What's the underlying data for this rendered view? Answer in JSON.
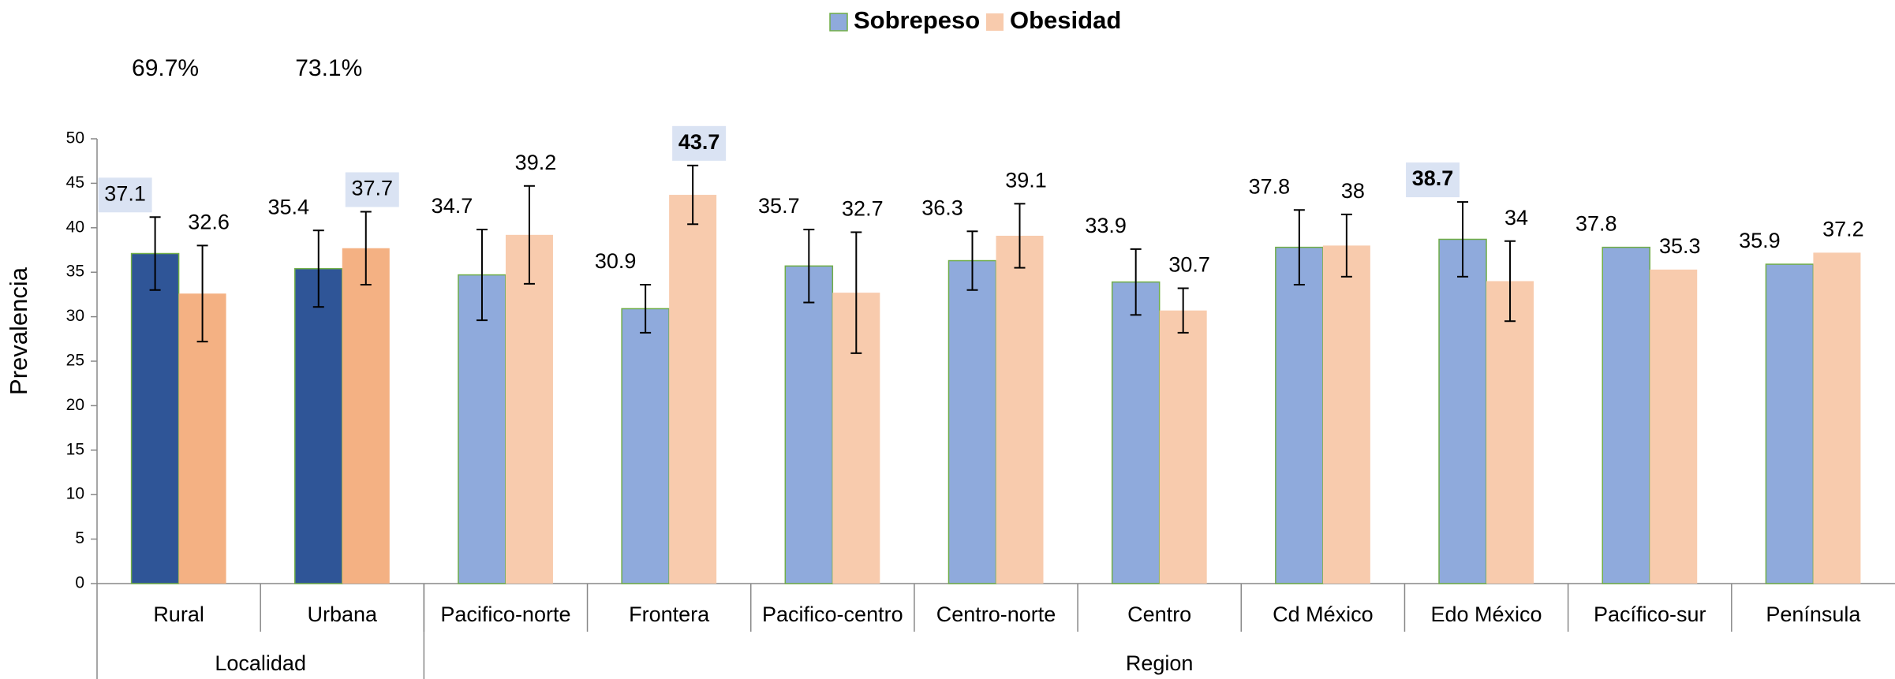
{
  "chart_data": {
    "type": "bar",
    "ylabel": "Prevalencia",
    "categories": [
      "Rural",
      "Urbana",
      "Pacifico-norte",
      "Frontera",
      "Pacifico-centro",
      "Centro-norte",
      "Centro",
      "Cd México",
      "Edo México",
      "Pacífico-sur",
      "Península"
    ],
    "groups": [
      {
        "label": "Localidad",
        "span": 2
      },
      {
        "label": "Region",
        "span": 9
      }
    ],
    "series": [
      {
        "name": "Sobrepeso",
        "color": "#8faadc",
        "edgecolor": "#70ad47",
        "colors": [
          "#2f5597",
          "#2f5597",
          "#8faadc",
          "#8faadc",
          "#8faadc",
          "#8faadc",
          "#8faadc",
          "#8faadc",
          "#8faadc",
          "#8faadc",
          "#8faadc"
        ],
        "values": [
          37.1,
          35.4,
          34.7,
          30.9,
          35.7,
          36.3,
          33.9,
          37.8,
          38.7,
          37.8,
          35.9
        ],
        "errors": [
          4.1,
          4.3,
          5.1,
          2.7,
          4.1,
          3.3,
          3.7,
          4.2,
          4.2,
          null,
          null
        ],
        "highlight": [
          true,
          false,
          false,
          false,
          false,
          false,
          false,
          false,
          true,
          false,
          false
        ],
        "bold": [
          false,
          false,
          false,
          false,
          false,
          false,
          false,
          false,
          true,
          false,
          false
        ]
      },
      {
        "name": "Obesidad",
        "color": "#f8cbad",
        "edgecolor": "none",
        "colors": [
          "#f4b183",
          "#f4b183",
          "#f8cbad",
          "#f8cbad",
          "#f8cbad",
          "#f8cbad",
          "#f8cbad",
          "#f8cbad",
          "#f8cbad",
          "#f8cbad",
          "#f8cbad"
        ],
        "values": [
          32.6,
          37.7,
          39.2,
          43.7,
          32.7,
          39.1,
          30.7,
          38,
          34,
          35.3,
          37.2
        ],
        "errors": [
          5.4,
          4.1,
          5.5,
          3.3,
          6.8,
          3.6,
          2.5,
          3.5,
          4.5,
          null,
          null
        ],
        "highlight": [
          false,
          true,
          false,
          true,
          false,
          false,
          false,
          false,
          false,
          false,
          false
        ],
        "bold": [
          false,
          false,
          false,
          true,
          false,
          false,
          false,
          false,
          false,
          false,
          false
        ]
      }
    ],
    "annotations": [
      {
        "text": "69.7%",
        "category": 0
      },
      {
        "text": "73.1%",
        "category": 1
      }
    ],
    "highlight_color": "#dae3f3",
    "legend": "top",
    "ylim": [
      0,
      50
    ],
    "yticks": [
      0,
      5,
      10,
      15,
      20,
      25,
      30,
      35,
      40,
      45,
      50
    ]
  }
}
